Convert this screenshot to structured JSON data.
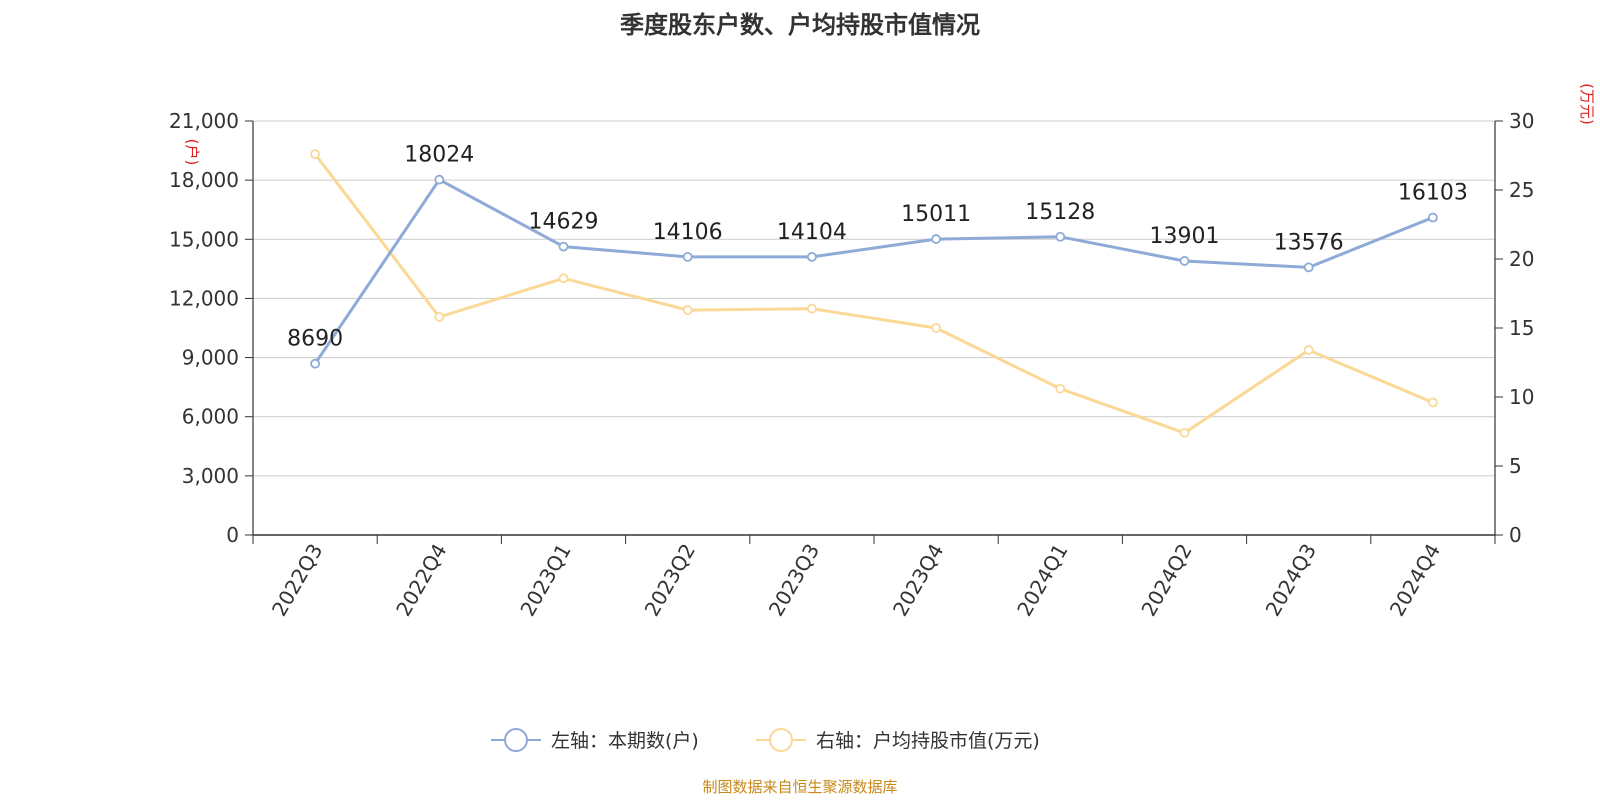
{
  "chart_data": {
    "type": "line",
    "title": "季度股东户数、户均持股市值情况",
    "categories": [
      "2022Q3",
      "2022Q4",
      "2023Q1",
      "2023Q2",
      "2023Q3",
      "2023Q4",
      "2024Q1",
      "2024Q2",
      "2024Q3",
      "2024Q4"
    ],
    "left_axis": {
      "unit_label": "(户)",
      "min": 0,
      "max": 21000,
      "ticks": [
        0,
        3000,
        6000,
        9000,
        12000,
        15000,
        18000,
        21000
      ],
      "tick_labels": [
        "0",
        "3,000",
        "6,000",
        "9,000",
        "12,000",
        "15,000",
        "18,000",
        "21,000"
      ]
    },
    "right_axis": {
      "unit_label": "(万元)",
      "min": 0,
      "max": 30,
      "ticks": [
        0,
        5,
        10,
        15,
        20,
        25,
        30
      ],
      "tick_labels": [
        "0",
        "5",
        "10",
        "15",
        "20",
        "25",
        "30"
      ]
    },
    "series": [
      {
        "name": "左轴：本期数(户)",
        "axis": "left",
        "color": "#8eaad6",
        "values": [
          8690,
          18024,
          14629,
          14106,
          14104,
          15011,
          15128,
          13901,
          13576,
          16103
        ],
        "data_labels": [
          "8690",
          "18024",
          "14629",
          "14106",
          "14104",
          "15011",
          "15128",
          "13901",
          "13576",
          "16103"
        ]
      },
      {
        "name": "右轴：户均持股市值(万元)",
        "axis": "right",
        "color": "#fbd896",
        "values": [
          27.6,
          15.8,
          18.6,
          16.3,
          16.4,
          15.0,
          10.6,
          7.4,
          13.4,
          9.6
        ]
      }
    ],
    "grid": true,
    "legend_position": "bottom-center",
    "source": "制图数据来自恒生聚源数据库",
    "source_color": "#c8891a",
    "unit_label_color": "#e02020"
  }
}
